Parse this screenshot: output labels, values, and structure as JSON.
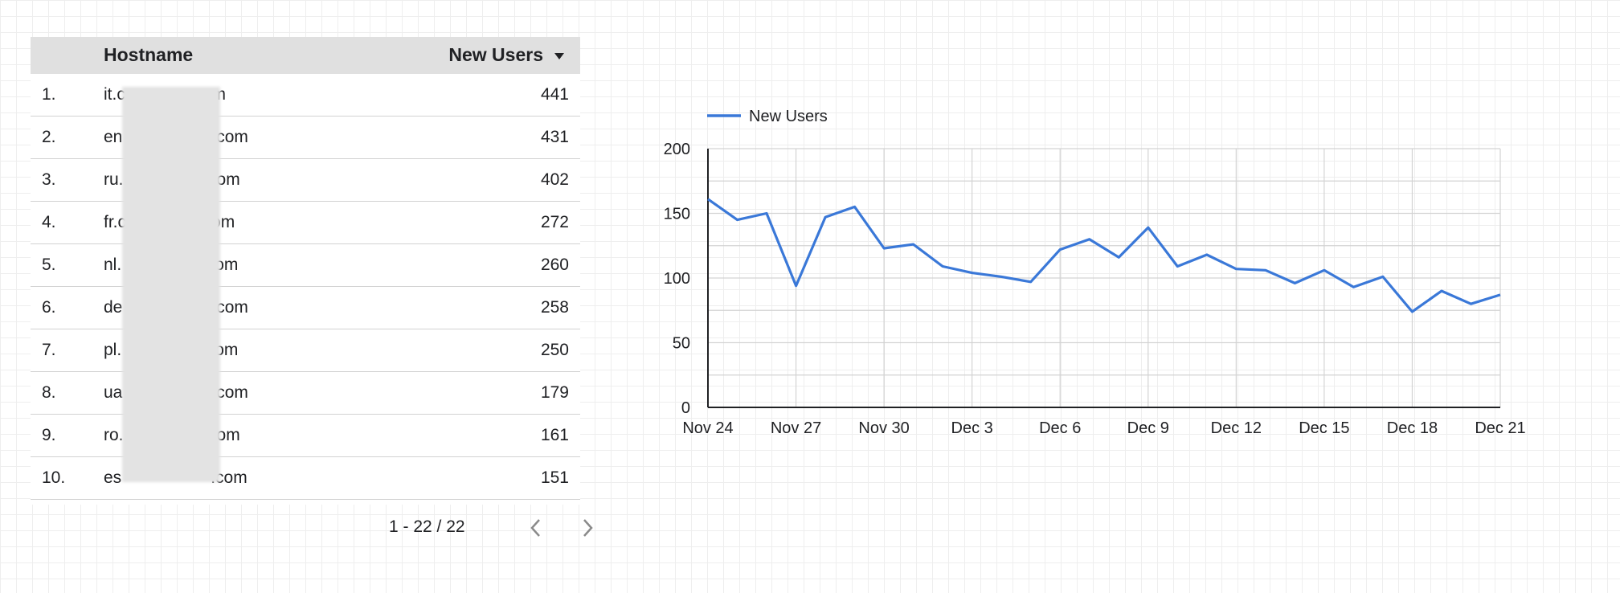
{
  "table": {
    "columns": {
      "hostname": "Hostname",
      "new_users": "New Users"
    },
    "rows": [
      {
        "index": "1.",
        "host_prefix": "it.c",
        "host_suffix": "om",
        "value": "441"
      },
      {
        "index": "2.",
        "host_prefix": "en",
        "host_suffix": ".com",
        "value": "431"
      },
      {
        "index": "3.",
        "host_prefix": "ru.",
        "host_suffix": "om",
        "value": "402"
      },
      {
        "index": "4.",
        "host_prefix": "fr.c",
        "host_suffix": "om",
        "value": "272"
      },
      {
        "index": "5.",
        "host_prefix": "nl.",
        "host_suffix": "om",
        "value": "260"
      },
      {
        "index": "6.",
        "host_prefix": "de",
        "host_suffix": ".com",
        "value": "258"
      },
      {
        "index": "7.",
        "host_prefix": "pl.",
        "host_suffix": "om",
        "value": "250"
      },
      {
        "index": "8.",
        "host_prefix": "ua",
        "host_suffix": ".com",
        "value": "179"
      },
      {
        "index": "9.",
        "host_prefix": "ro.",
        "host_suffix": "om",
        "value": "161"
      },
      {
        "index": "10.",
        "host_prefix": "es",
        "host_suffix": ".com",
        "value": "151"
      }
    ]
  },
  "pagination": {
    "range": "1 - 22 / 22"
  },
  "icons": {
    "sort": "sort-desc-icon",
    "prev": "chevron-left-icon",
    "next": "chevron-right-icon"
  },
  "colors": {
    "series": "#3a78d8",
    "header_bg": "#e0e0e0",
    "grid": "#d3d3d3"
  },
  "chart_data": {
    "type": "line",
    "legend": {
      "position": "top-left",
      "entries": [
        "New Users"
      ]
    },
    "x": [
      "2024-11-24",
      "2024-11-25",
      "2024-11-26",
      "2024-11-27",
      "2024-11-28",
      "2024-11-29",
      "2024-11-30",
      "2024-12-01",
      "2024-12-02",
      "2024-12-03",
      "2024-12-04",
      "2024-12-05",
      "2024-12-06",
      "2024-12-07",
      "2024-12-08",
      "2024-12-09",
      "2024-12-10",
      "2024-12-11",
      "2024-12-12",
      "2024-12-13",
      "2024-12-14",
      "2024-12-15",
      "2024-12-16",
      "2024-12-17",
      "2024-12-18",
      "2024-12-19",
      "2024-12-20",
      "2024-12-21"
    ],
    "series": [
      {
        "name": "New Users",
        "values": [
          161,
          145,
          150,
          94,
          147,
          155,
          123,
          126,
          109,
          104,
          101,
          97,
          122,
          130,
          116,
          139,
          109,
          118,
          107,
          106,
          96,
          106,
          93,
          101,
          74,
          90,
          80,
          87
        ]
      }
    ],
    "x_tick_labels": [
      "Nov 24",
      "Nov 27",
      "Nov 30",
      "Dec 3",
      "Dec 6",
      "Dec 9",
      "Dec 12",
      "Dec 15",
      "Dec 18",
      "Dec 21"
    ],
    "y_ticks": [
      0,
      50,
      100,
      150,
      200
    ],
    "y_tick_labels": [
      "0",
      "50",
      "100",
      "150",
      "200"
    ],
    "ylim": [
      0,
      200
    ],
    "grid": true
  }
}
